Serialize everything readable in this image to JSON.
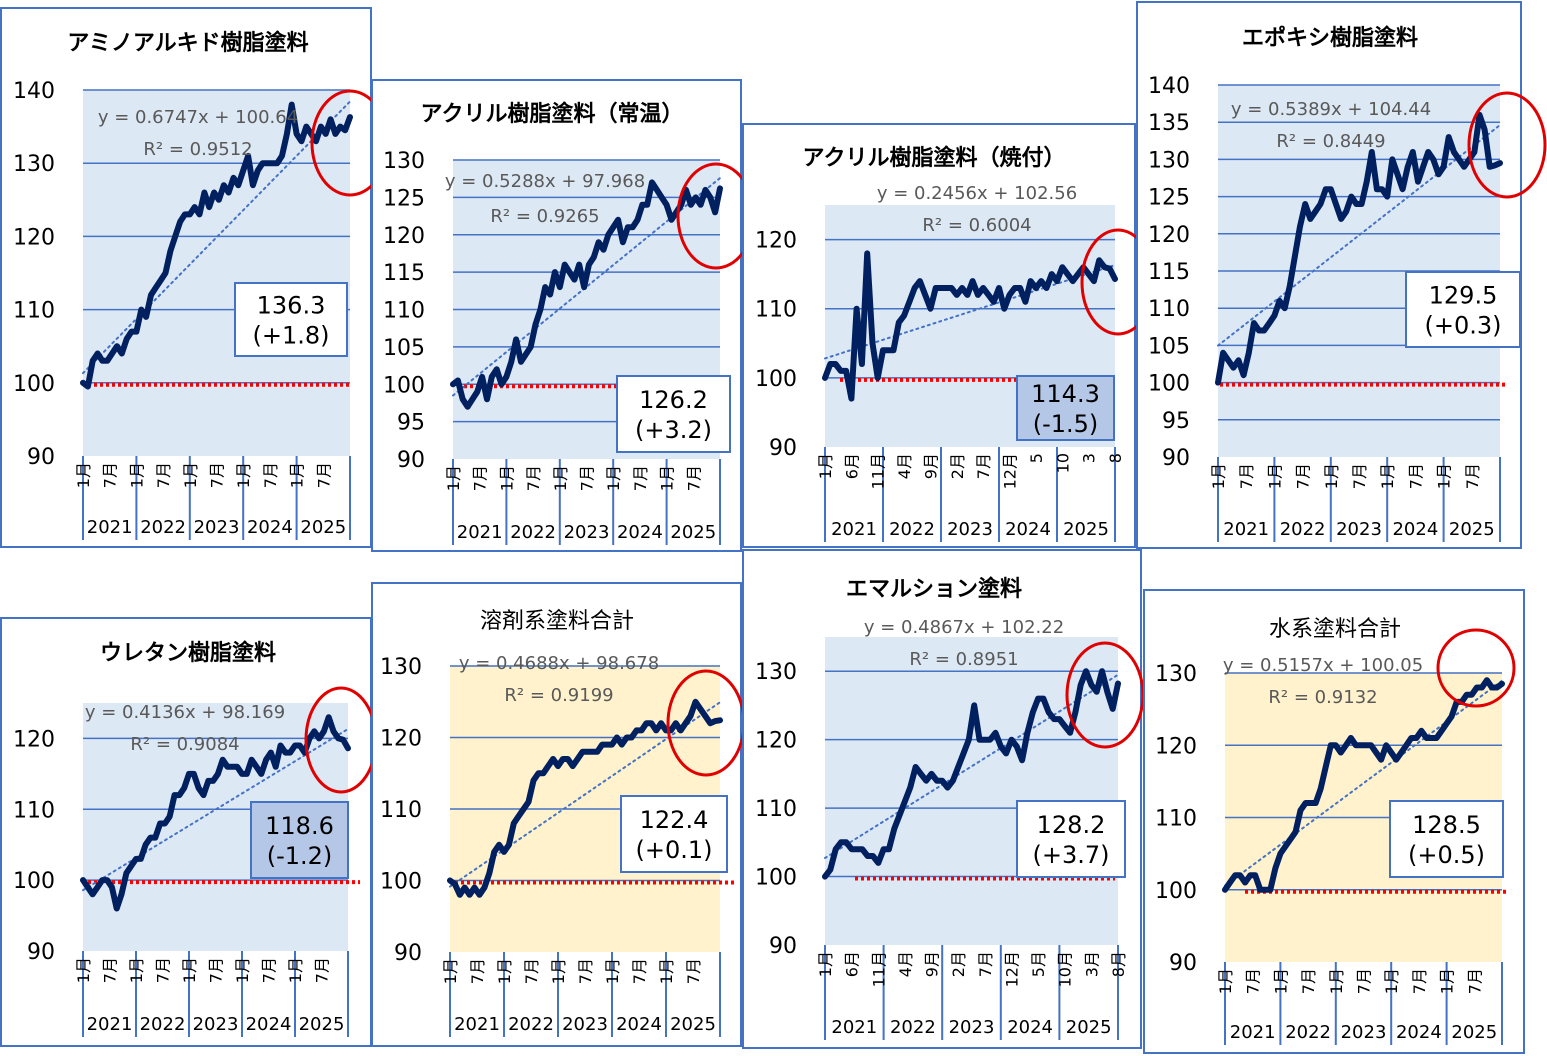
{
  "colors": {
    "line": "#002060",
    "grid": "#4472C4",
    "trend": "#4472C4",
    "panel_border": "#4472C4",
    "blue_bg": "#DDE8F5",
    "yellow_bg": "#FFF2CC",
    "base_line": "#FF0000",
    "highlight": "#E00000",
    "box_highlight": "#B4C7E7"
  },
  "chart_data": [
    {
      "type": "line",
      "title": "アミノアルキド樹脂塗料",
      "bg": "blue",
      "ylim": [
        90,
        140
      ],
      "yticks": [
        90,
        100,
        110,
        120,
        130,
        140
      ],
      "equation": "y = 0.6747x + 100.64",
      "r2": "R² = 0.9512",
      "trend": [
        0.6747,
        100.64
      ],
      "value_label": "136.3",
      "change_label": "(+1.8)",
      "box_highlight": false,
      "month_labels": [
        "1月",
        "7月",
        "1月",
        "7月",
        "1月",
        "7月",
        "1月",
        "7月",
        "1月",
        "7月"
      ],
      "years": [
        "2021",
        "2022",
        "2023",
        "2024",
        "2025"
      ],
      "values": [
        100,
        99.5,
        103,
        104,
        103,
        103,
        104,
        105,
        104,
        106,
        107,
        107,
        110,
        109,
        112,
        113,
        114,
        115,
        118,
        120,
        122,
        123,
        123,
        124,
        123,
        126,
        124,
        126,
        125,
        127,
        126,
        128,
        127,
        129,
        131,
        127,
        129,
        130,
        130,
        130,
        130,
        131,
        134,
        138,
        134,
        133,
        135,
        134,
        133,
        135,
        134,
        136,
        134,
        135,
        134.5,
        136.3
      ]
    },
    {
      "type": "line",
      "title": "アクリル樹脂塗料（常温）",
      "bg": "blue",
      "ylim": [
        90,
        130
      ],
      "yticks": [
        90,
        95,
        100,
        105,
        110,
        115,
        120,
        125,
        130
      ],
      "equation": "y = 0.5288x + 97.968",
      "r2": "R² = 0.9265",
      "trend": [
        0.5288,
        97.968
      ],
      "value_label": "126.2",
      "change_label": "(+3.2)",
      "box_highlight": false,
      "month_labels": [
        "1月",
        "7月",
        "1月",
        "7月",
        "1月",
        "7月",
        "1月",
        "7月",
        "1月",
        "7月"
      ],
      "years": [
        "2021",
        "2022",
        "2023",
        "2024",
        "2025"
      ],
      "values": [
        100,
        100.5,
        98,
        97,
        98,
        99,
        101,
        98,
        101,
        102,
        100,
        101,
        103,
        106,
        103,
        104,
        105,
        108,
        110,
        113,
        112,
        115,
        113,
        116,
        115,
        114,
        116,
        113,
        116,
        117,
        119,
        118,
        120,
        121,
        122,
        119,
        121,
        121,
        122,
        124,
        124,
        127,
        126,
        125,
        124,
        122,
        123,
        124,
        126,
        124,
        125,
        124,
        126,
        125,
        123,
        126.2
      ]
    },
    {
      "type": "line",
      "title": "アクリル樹脂塗料（焼付）",
      "bg": "blue",
      "ylim": [
        90,
        125
      ],
      "yticks": [
        90,
        100,
        110,
        120
      ],
      "equation": "y = 0.2456x + 102.56",
      "r2": "R² = 0.6004",
      "trend": [
        0.2456,
        102.56
      ],
      "value_label": "114.3",
      "change_label": "(-1.5)",
      "box_highlight": true,
      "month_labels": [
        "1月",
        "6月",
        "11月",
        "4月",
        "9月",
        "2月",
        "7月",
        "12月",
        "5",
        "10",
        "3",
        "8"
      ],
      "years": [
        "2021",
        "2022",
        "2023",
        "2024",
        "2025"
      ],
      "values": [
        100,
        102,
        102,
        101,
        101,
        97,
        110,
        102,
        118,
        105,
        100,
        104,
        104,
        104,
        108,
        109,
        111,
        113,
        114,
        112,
        110,
        113,
        113,
        113,
        113,
        112,
        113,
        112,
        114,
        112,
        113,
        112,
        111,
        113,
        110,
        112,
        113,
        113,
        111,
        114,
        113,
        114,
        113,
        115,
        114,
        116,
        115,
        114,
        115,
        116,
        115,
        114,
        117,
        116,
        115.8,
        114.3
      ]
    },
    {
      "type": "line",
      "title": "エポキシ樹脂塗料",
      "bg": "blue",
      "ylim": [
        90,
        140
      ],
      "yticks": [
        90,
        95,
        100,
        105,
        110,
        115,
        120,
        125,
        130,
        135,
        140
      ],
      "equation": "y = 0.5389x + 104.44",
      "r2": "R² = 0.8449",
      "trend": [
        0.5389,
        104.44
      ],
      "value_label": "129.5",
      "change_label": "(+0.3)",
      "box_highlight": false,
      "month_labels": [
        "1月",
        "7月",
        "1月",
        "7月",
        "1月",
        "7月",
        "1月",
        "7月",
        "1月",
        "7月"
      ],
      "years": [
        "2021",
        "2022",
        "2023",
        "2024",
        "2025"
      ],
      "values": [
        100,
        104,
        103,
        102,
        103,
        101,
        104,
        108,
        107,
        107,
        108,
        109,
        111,
        110,
        113,
        117,
        121,
        124,
        122,
        123,
        124,
        126,
        126,
        124,
        122,
        123,
        125,
        124,
        124,
        127,
        131,
        126,
        126,
        125,
        130,
        128,
        126,
        129,
        131,
        127,
        129,
        131,
        130,
        128,
        129,
        133,
        131,
        130,
        129,
        130,
        131,
        136,
        134,
        129,
        129.2,
        129.5
      ]
    },
    {
      "type": "line",
      "title": "ウレタン樹脂塗料",
      "bg": "blue",
      "ylim": [
        90,
        125
      ],
      "yticks": [
        90,
        100,
        110,
        120
      ],
      "equation": "y = 0.4136x + 98.169",
      "r2": "R² = 0.9084",
      "trend": [
        0.4136,
        98.169
      ],
      "value_label": "118.6",
      "change_label": "(-1.2)",
      "box_highlight": true,
      "month_labels": [
        "1月",
        "7月",
        "1月",
        "7月",
        "1月",
        "7月",
        "1月",
        "7月",
        "1月",
        "7月"
      ],
      "years": [
        "2021",
        "2022",
        "2023",
        "2024",
        "2025"
      ],
      "values": [
        100,
        99,
        98,
        99,
        100,
        100,
        99,
        96,
        98,
        101,
        102,
        103,
        103,
        105,
        106,
        106,
        108,
        108,
        109,
        112,
        112,
        113,
        115,
        115,
        113,
        112,
        114,
        114,
        115,
        117,
        116,
        116,
        116,
        115,
        115,
        117,
        116,
        115,
        117,
        118,
        116,
        119,
        118,
        118,
        119,
        119,
        118,
        120,
        121,
        120,
        121,
        123,
        121,
        120,
        119.8,
        118.6
      ]
    },
    {
      "type": "line",
      "title": "溶剤系塗料合計",
      "bg": "yellow",
      "ylim": [
        90,
        130
      ],
      "yticks": [
        90,
        100,
        110,
        120,
        130
      ],
      "equation": "y = 0.4688x + 98.678",
      "r2": "R² = 0.9199",
      "trend": [
        0.4688,
        98.678
      ],
      "value_label": "122.4",
      "change_label": "(+0.1)",
      "box_highlight": false,
      "month_labels": [
        "1月",
        "7月",
        "1月",
        "7月",
        "1月",
        "7月",
        "1月",
        "7月",
        "1月",
        "7月"
      ],
      "years": [
        "2021",
        "2022",
        "2023",
        "2024",
        "2025"
      ],
      "values": [
        100,
        99.5,
        98,
        99,
        98,
        99,
        98,
        99,
        101,
        104,
        105,
        104,
        105,
        108,
        109,
        110,
        111,
        114,
        115,
        115,
        116,
        117,
        116,
        117,
        117,
        116,
        117,
        118,
        118,
        118,
        118,
        119,
        119,
        119,
        120,
        119,
        120,
        120,
        121,
        121,
        122,
        122,
        121,
        122,
        121,
        121,
        122,
        121,
        122,
        123,
        125,
        124,
        123,
        122,
        122.3,
        122.4
      ]
    },
    {
      "type": "line",
      "title": "エマルション塗料",
      "bg": "blue",
      "ylim": [
        90,
        135
      ],
      "yticks": [
        90,
        100,
        110,
        120,
        130
      ],
      "equation": "y = 0.4867x + 102.22",
      "r2": "R² = 0.8951",
      "trend": [
        0.4867,
        102.22
      ],
      "value_label": "128.2",
      "change_label": "(+3.7)",
      "box_highlight": false,
      "month_labels": [
        "1月",
        "6月",
        "11月",
        "4月",
        "9月",
        "2月",
        "7月",
        "12月",
        "5月",
        "10月",
        "3月",
        "8月"
      ],
      "years": [
        "2021",
        "2022",
        "2023",
        "2024",
        "2025"
      ],
      "values": [
        100,
        101,
        104,
        105,
        105,
        104,
        104,
        104,
        103,
        103,
        102,
        104,
        104,
        107,
        109,
        111,
        113,
        116,
        115,
        114,
        115,
        114,
        114,
        113,
        114,
        116,
        118,
        120,
        125,
        120,
        120,
        120,
        121,
        119,
        118,
        120,
        119,
        117,
        121,
        124,
        126,
        126,
        124,
        123,
        123,
        122,
        121,
        124,
        128,
        130,
        128,
        127,
        130,
        127,
        124.5,
        128.2
      ]
    },
    {
      "type": "line",
      "title": "水系塗料合計",
      "bg": "yellow",
      "ylim": [
        90,
        130
      ],
      "yticks": [
        90,
        100,
        110,
        120,
        130
      ],
      "equation": "y = 0.5157x + 100.05",
      "r2": "R² = 0.9132",
      "trend": [
        0.5157,
        100.05
      ],
      "value_label": "128.5",
      "change_label": "(+0.5)",
      "box_highlight": false,
      "month_labels": [
        "1月",
        "7月",
        "1月",
        "7月",
        "1月",
        "7月",
        "1月",
        "7月",
        "1月",
        "7月"
      ],
      "years": [
        "2021",
        "2022",
        "2023",
        "2024",
        "2025"
      ],
      "values": [
        100,
        101,
        102,
        102,
        101,
        102,
        102,
        100,
        100,
        100,
        103,
        105,
        106,
        107,
        108,
        111,
        112,
        112,
        112,
        114,
        117,
        120,
        120,
        119,
        120,
        121,
        120,
        120,
        120,
        120,
        119,
        118,
        120,
        119,
        118,
        119,
        120,
        121,
        121,
        122,
        121,
        121,
        121,
        122,
        123,
        124,
        126,
        126,
        127,
        127,
        128,
        128,
        129,
        128,
        128.0,
        128.5
      ]
    }
  ]
}
